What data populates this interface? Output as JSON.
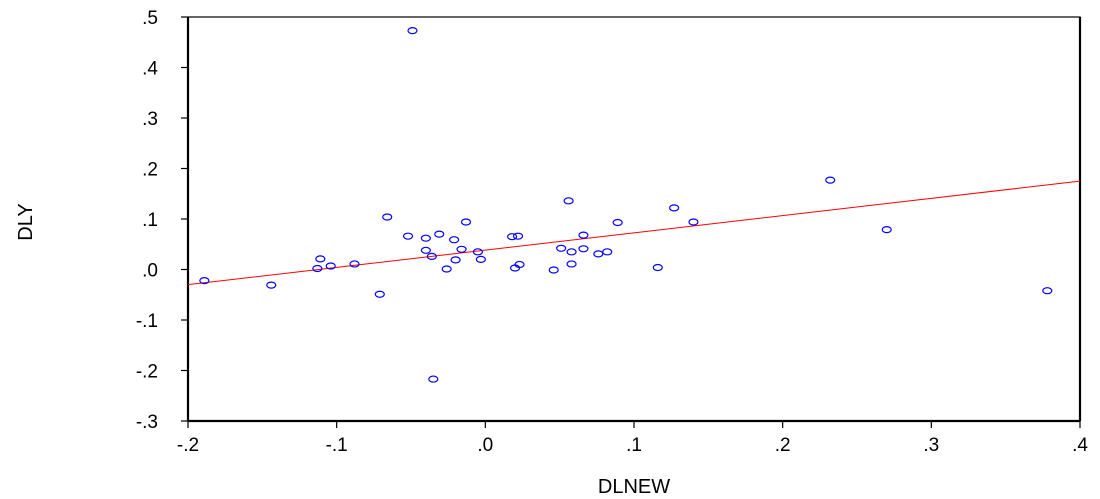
{
  "chart_data": {
    "type": "scatter",
    "title": "",
    "xlabel": "DLNEW",
    "ylabel": "DLY",
    "xlim": [
      -0.2,
      0.4
    ],
    "ylim": [
      -0.3,
      0.5
    ],
    "xticks": [
      -0.2,
      -0.1,
      0.0,
      0.1,
      0.2,
      0.3,
      0.4
    ],
    "xtick_labels": [
      "-.2",
      "-.1",
      ".0",
      ".1",
      ".2",
      ".3",
      ".4"
    ],
    "yticks": [
      -0.3,
      -0.2,
      -0.1,
      0.0,
      0.1,
      0.2,
      0.3,
      0.4,
      0.5
    ],
    "ytick_labels": [
      "-.3",
      "-.2",
      "-.1",
      ".0",
      ".1",
      ".2",
      ".3",
      ".4",
      ".5"
    ],
    "grid": false,
    "legend": "none",
    "marker_color": "#0000ff",
    "fit_line_color": "#ff0000",
    "fit_line": {
      "x": [
        -0.2,
        0.4
      ],
      "y": [
        -0.03,
        0.175
      ]
    },
    "points": [
      {
        "x": -0.189,
        "y": -0.022
      },
      {
        "x": -0.144,
        "y": -0.031
      },
      {
        "x": -0.111,
        "y": 0.021
      },
      {
        "x": -0.113,
        "y": 0.002
      },
      {
        "x": -0.104,
        "y": 0.007
      },
      {
        "x": -0.088,
        "y": 0.011
      },
      {
        "x": -0.071,
        "y": -0.049
      },
      {
        "x": -0.066,
        "y": 0.104
      },
      {
        "x": -0.052,
        "y": 0.066
      },
      {
        "x": -0.049,
        "y": 0.473
      },
      {
        "x": -0.04,
        "y": 0.062
      },
      {
        "x": -0.04,
        "y": 0.038
      },
      {
        "x": -0.036,
        "y": 0.026
      },
      {
        "x": -0.035,
        "y": -0.217
      },
      {
        "x": -0.031,
        "y": 0.07
      },
      {
        "x": -0.026,
        "y": 0.001
      },
      {
        "x": -0.021,
        "y": 0.059
      },
      {
        "x": -0.02,
        "y": 0.019
      },
      {
        "x": -0.016,
        "y": 0.04
      },
      {
        "x": -0.013,
        "y": 0.094
      },
      {
        "x": -0.005,
        "y": 0.035
      },
      {
        "x": -0.003,
        "y": 0.02
      },
      {
        "x": 0.018,
        "y": 0.065
      },
      {
        "x": 0.02,
        "y": 0.003
      },
      {
        "x": 0.022,
        "y": 0.066
      },
      {
        "x": 0.023,
        "y": 0.01
      },
      {
        "x": 0.046,
        "y": -0.001
      },
      {
        "x": 0.051,
        "y": 0.042
      },
      {
        "x": 0.056,
        "y": 0.136
      },
      {
        "x": 0.058,
        "y": 0.011
      },
      {
        "x": 0.058,
        "y": 0.035
      },
      {
        "x": 0.066,
        "y": 0.041
      },
      {
        "x": 0.066,
        "y": 0.068
      },
      {
        "x": 0.076,
        "y": 0.031
      },
      {
        "x": 0.082,
        "y": 0.035
      },
      {
        "x": 0.089,
        "y": 0.093
      },
      {
        "x": 0.116,
        "y": 0.004
      },
      {
        "x": 0.127,
        "y": 0.122
      },
      {
        "x": 0.14,
        "y": 0.094
      },
      {
        "x": 0.232,
        "y": 0.177
      },
      {
        "x": 0.27,
        "y": 0.079
      },
      {
        "x": 0.378,
        "y": -0.042
      }
    ]
  }
}
